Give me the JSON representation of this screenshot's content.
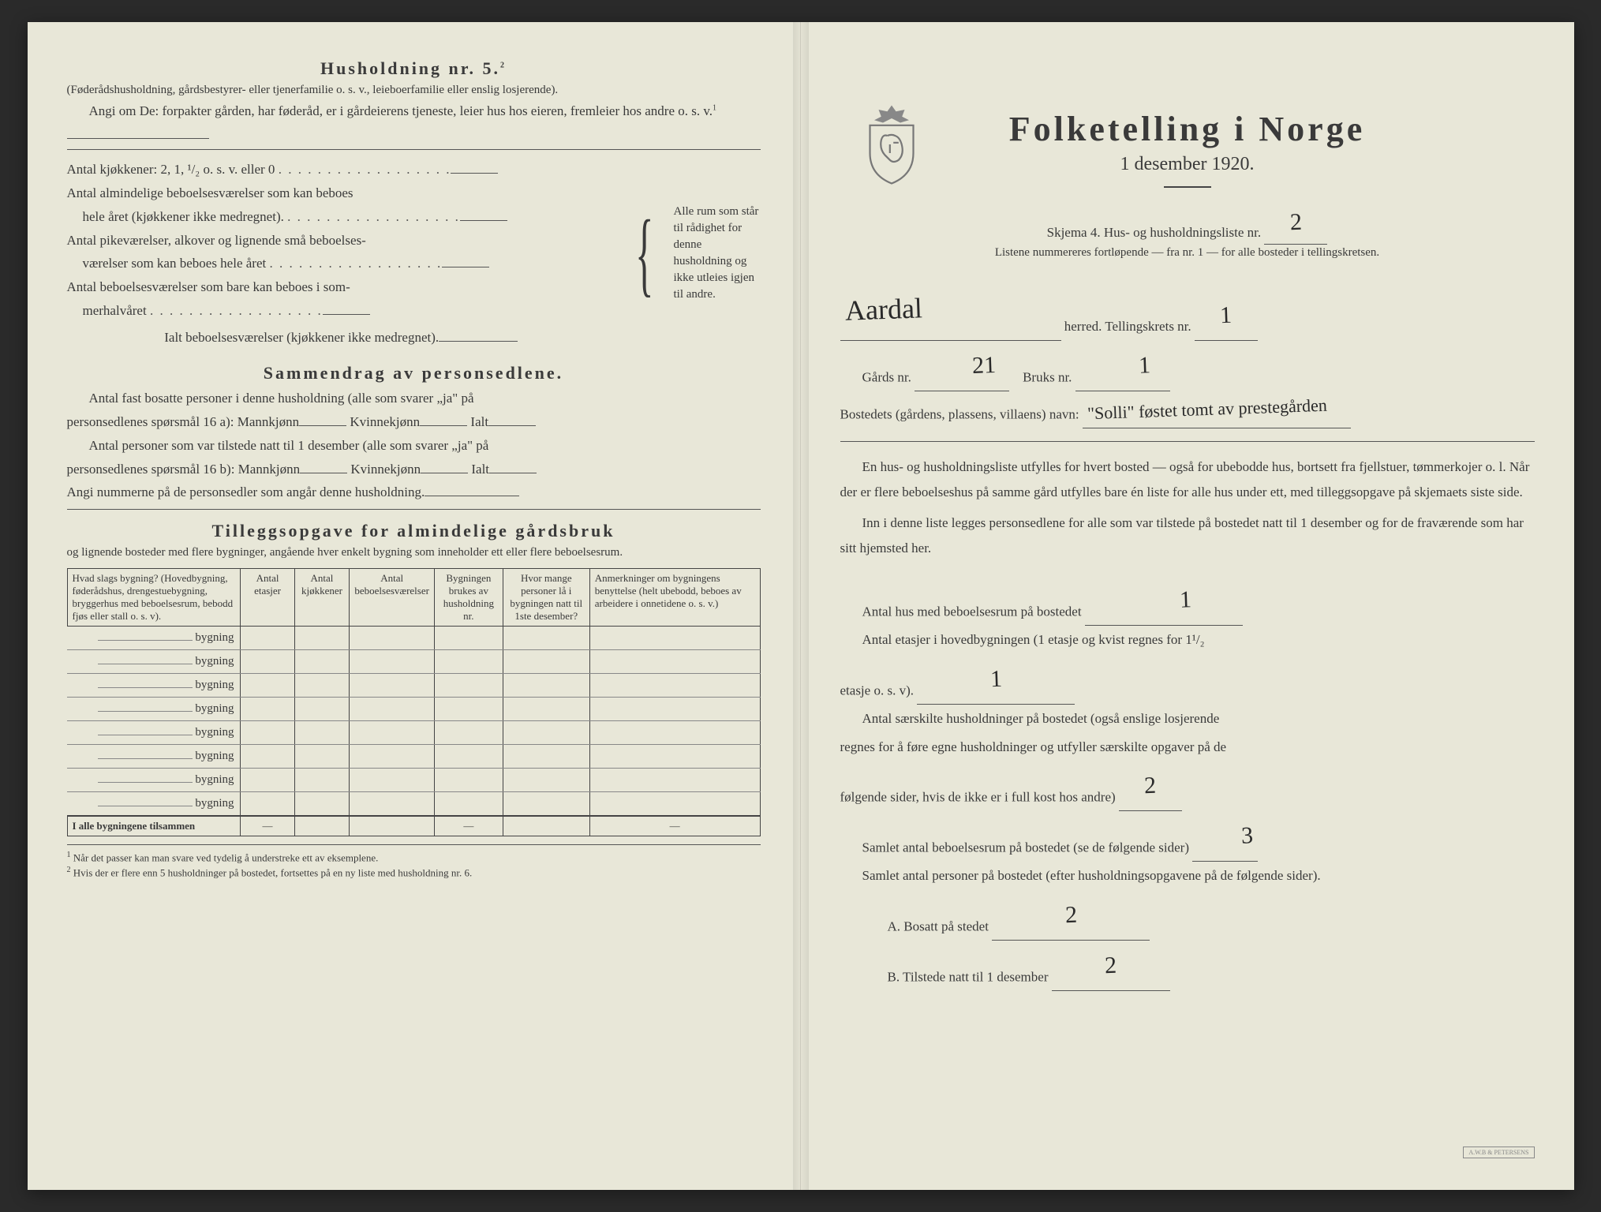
{
  "colors": {
    "paper": "#e8e7d8",
    "ink": "#3a3a3a",
    "handwriting": "#2a2a2a",
    "rule": "#555555"
  },
  "left": {
    "h5_title": "Husholdning nr. 5.",
    "h5_sup": "2",
    "h5_paren": "(Føderådshusholdning, gårdsbestyrer- eller tjenerfamilie o. s. v., leieboerfamilie eller enslig losjerende).",
    "angi_line": "Angi om De: forpakter gården, har føderåd, er i gårdeierens tjeneste, leier hus hos eieren, fremleier hos andre o. s. v.",
    "angi_sup": "1",
    "rooms": {
      "line1": "Antal kjøkkener: 2, 1, ¹/₂ o. s. v. eller 0",
      "line2a": "Antal almindelige beboelsesværelser som kan beboes",
      "line2b": "hele året (kjøkkener ikke medregnet).",
      "line3a": "Antal pikeværelser, alkover og lignende små beboelses-",
      "line3b": "værelser som kan beboes hele året",
      "line4a": "Antal beboelsesværelser som bare kan beboes i som-",
      "line4b": "merhalvåret",
      "total": "Ialt beboelsesværelser (kjøkkener ikke medregnet).",
      "brace_text": "Alle rum som står til rådighet for denne husholdning og ikke utleies igjen til andre."
    },
    "sammen_title": "Sammendrag av personsedlene.",
    "sammen_p1a": "Antal fast bosatte personer i denne husholdning (alle som svarer „ja\" på",
    "sammen_p1b": "personsedlenes spørsmål 16 a): Mannkjønn",
    "sammen_kv": "Kvinnekjønn",
    "sammen_ialt": "Ialt",
    "sammen_p2a": "Antal personer som var tilstede natt til 1 desember (alle som svarer „ja\" på",
    "sammen_p2b": "personsedlenes spørsmål 16 b): Mannkjønn",
    "sammen_p3": "Angi nummerne på de personsedler som angår denne husholdning.",
    "tillegg_title": "Tilleggsopgave for almindelige gårdsbruk",
    "tillegg_sub": "og lignende bosteder med flere bygninger, angående hver enkelt bygning som inneholder ett eller flere beboelsesrum.",
    "table": {
      "headers": [
        "Hvad slags bygning?\n(Hovedbygning, føderådshus, drengestuebygning, bryggerhus med beboelsesrum, bebodd fjøs eller stall o. s. v).",
        "Antal etasjer",
        "Antal kjøkkener",
        "Antal beboelsesværelser",
        "Bygningen brukes av husholdning nr.",
        "Hvor mange personer lå i bygningen natt til 1ste desember?",
        "Anmerkninger om bygningens benyttelse (helt ubebodd, beboes av arbeidere i onnetidene o. s. v.)"
      ],
      "row_label": "bygning",
      "row_count": 8,
      "total_label": "I alle bygningene tilsammen"
    },
    "footnotes": [
      "Når det passer kan man svare ved tydelig å understreke ett av eksemplene.",
      "Hvis der er flere enn 5 husholdninger på bostedet, fortsettes på en ny liste med husholdning nr. 6."
    ]
  },
  "right": {
    "title": "Folketelling i Norge",
    "subtitle": "1 desember 1920.",
    "skjema_line": "Skjema 4.   Hus- og husholdningsliste nr.",
    "liste_nr": "2",
    "listene_line": "Listene nummereres fortløpende — fra nr. 1 — for alle bosteder i tellingskretsen.",
    "herred_label": "herred.   Tellingskrets nr.",
    "herred_value": "Aardal",
    "krets_nr": "1",
    "gards_label": "Gårds nr.",
    "gards_nr": "21",
    "bruks_label": "Bruks nr.",
    "bruks_nr": "1",
    "bosted_label": "Bostedets (gårdens, plassens, villaens) navn:",
    "bosted_value": "\"Solli\" føstet tomt av prestegården",
    "para1": "En hus- og husholdningsliste utfylles for hvert bosted — også for ubebodde hus, bortsett fra fjellstuer, tømmerkojer o. l.  Når der er flere beboelseshus på samme gård utfylles bare én liste for alle hus under ett, med tilleggsopgave på skjemaets siste side.",
    "para2": "Inn i denne liste legges personsedlene for alle som var tilstede på bostedet natt til 1 desember og for de fraværende som har sitt hjemsted her.",
    "q_hus": "Antal hus med beboelsesrum på bostedet",
    "q_hus_val": "1",
    "q_etasjer_a": "Antal etasjer i hovedbygningen (1 etasje og kvist regnes for 1¹/₂",
    "q_etasjer_b": "etasje o. s. v).",
    "q_etasjer_val": "1",
    "q_hush_a": "Antal særskilte husholdninger på bostedet (også enslige losjerende",
    "q_hush_b": "regnes for å føre egne husholdninger og utfyller særskilte opgaver på de",
    "q_hush_c": "følgende sider, hvis de ikke er i full kost hos andre)",
    "q_hush_val": "2",
    "q_rom": "Samlet antal beboelsesrum på bostedet (se de følgende sider)",
    "q_rom_val": "3",
    "q_pers": "Samlet antal personer på bostedet (efter husholdningsopgavene på de følgende sider).",
    "q_a": "A.  Bosatt på stedet",
    "q_a_val": "2",
    "q_b": "B.  Tilstede natt til 1 desember",
    "q_b_val": "2"
  }
}
